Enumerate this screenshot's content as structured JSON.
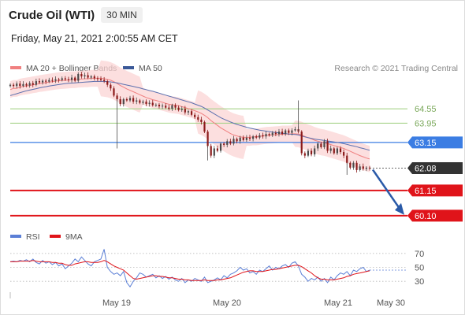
{
  "header": {
    "instrument": "Crude Oil (WTI)",
    "timeframe": "30 MIN",
    "datetime": "Friday, May 21, 2021 2:00:55 AM CET"
  },
  "legend": {
    "ma20_label": "MA 20 + Bollinger Bands",
    "ma50_label": "MA 50",
    "rsi_label": "RSI",
    "rsi_ma_label": "9MA",
    "copyright": "Research © 2021 Trading Central"
  },
  "colors": {
    "ma20": "#f08080",
    "bollinger_fill": "#fbd4d4",
    "ma50": "#5b6fae",
    "pivot_line": "#3b7de3",
    "support_red": "#e0141a",
    "resistance_green": "#a6d38a",
    "rsi": "#5b7fd6",
    "rsi_ma": "#e0141a",
    "arrow": "#2a5aa8",
    "candle_up": "#4a4a4a",
    "candle_down": "#8b1a1a"
  },
  "chart_data": [
    {
      "type": "candlestick",
      "ylim": [
        59.8,
        65.9
      ],
      "x_ticks": [
        "May 19",
        "May 20",
        "May 21",
        "May 30"
      ],
      "levels": [
        {
          "value": 64.55,
          "label": "64.55",
          "role": "resistance",
          "color": "#a6d38a"
        },
        {
          "value": 63.95,
          "label": "63.95",
          "role": "resistance",
          "color": "#a6d38a"
        },
        {
          "value": 63.15,
          "label": "63.15",
          "role": "pivot",
          "color": "#3b7de3"
        },
        {
          "value": 62.08,
          "label": "62.08",
          "role": "last_price",
          "color": "#333333"
        },
        {
          "value": 61.15,
          "label": "61.15",
          "role": "support",
          "color": "#e0141a"
        },
        {
          "value": 60.1,
          "label": "60.10",
          "role": "support",
          "color": "#e0141a"
        }
      ],
      "close": [
        65.55,
        65.5,
        65.6,
        65.5,
        65.58,
        65.52,
        65.62,
        65.55,
        65.7,
        65.65,
        65.72,
        65.68,
        65.75,
        65.72,
        65.78,
        65.75,
        65.82,
        65.78,
        65.75,
        65.85,
        65.72,
        66.0,
        65.9,
        65.95,
        65.85,
        65.9,
        65.82,
        65.8,
        65.75,
        65.7,
        65.55,
        65.4,
        65.1,
        64.95,
        64.75,
        64.95,
        64.9,
        65.0,
        64.85,
        64.9,
        64.8,
        64.85,
        64.75,
        64.8,
        64.7,
        64.72,
        64.65,
        64.68,
        64.6,
        64.55,
        64.7,
        64.6,
        64.5,
        64.55,
        64.4,
        64.45,
        64.3,
        64.2,
        64.1,
        64.0,
        63.6,
        63.0,
        62.6,
        62.9,
        62.8,
        63.1,
        63.05,
        63.2,
        63.1,
        63.3,
        63.2,
        63.35,
        63.25,
        63.35,
        63.3,
        63.4,
        63.35,
        63.45,
        63.4,
        63.5,
        63.45,
        63.55,
        63.5,
        63.6,
        63.5,
        63.65,
        63.55,
        63.65,
        63.7,
        63.6,
        62.7,
        62.6,
        62.8,
        62.65,
        62.9,
        63.1,
        62.95,
        63.2,
        62.8,
        62.9,
        62.7,
        62.9,
        62.75,
        62.6,
        62.3,
        62.1,
        62.3,
        62.0,
        62.15,
        62.05,
        62.1,
        62.08
      ],
      "ma20": [
        65.35,
        65.4,
        65.4,
        65.45,
        65.48,
        65.5,
        65.52,
        65.55,
        65.57,
        65.6,
        65.62,
        65.64,
        65.66,
        65.68,
        65.7,
        65.72,
        65.73,
        65.74,
        65.75,
        65.76,
        65.76,
        65.78,
        65.79,
        65.8,
        65.8,
        65.82,
        65.82,
        65.82,
        65.82,
        65.8,
        65.78,
        65.74,
        65.68,
        65.6,
        65.52,
        65.45,
        65.38,
        65.32,
        65.26,
        65.2,
        65.14,
        65.08,
        65.02,
        64.98,
        64.93,
        64.9,
        64.86,
        64.82,
        64.78,
        64.74,
        64.72,
        64.7,
        64.68,
        64.64,
        64.6,
        64.56,
        64.52,
        64.47,
        64.42,
        64.36,
        64.28,
        64.18,
        64.06,
        63.96,
        63.86,
        63.76,
        63.68,
        63.6,
        63.52,
        63.46,
        63.42,
        63.38,
        63.36,
        63.36,
        63.36,
        63.38,
        63.38,
        63.4,
        63.42,
        63.44,
        63.45,
        63.46,
        63.47,
        63.48,
        63.5,
        63.5,
        63.5,
        63.51,
        63.51,
        63.5,
        63.46,
        63.4,
        63.35,
        63.3,
        63.24,
        63.2,
        63.16,
        63.14,
        63.1,
        63.06,
        63.02,
        62.98,
        62.94,
        62.9,
        62.84,
        62.78,
        62.72,
        62.66,
        62.6,
        62.55,
        62.5,
        62.46
      ],
      "ma50": [
        65.1,
        65.14,
        65.18,
        65.22,
        65.26,
        65.3,
        65.33,
        65.36,
        65.39,
        65.42,
        65.45,
        65.47,
        65.5,
        65.52,
        65.54,
        65.56,
        65.58,
        65.6,
        65.61,
        65.62,
        65.63,
        65.64,
        65.65,
        65.66,
        65.67,
        65.68,
        65.69,
        65.69,
        65.69,
        65.69,
        65.68,
        65.67,
        65.65,
        65.63,
        65.6,
        65.57,
        65.54,
        65.51,
        65.48,
        65.45,
        65.42,
        65.38,
        65.35,
        65.31,
        65.28,
        65.24,
        65.2,
        65.16,
        65.12,
        65.08,
        65.04,
        65.0,
        64.96,
        64.92,
        64.88,
        64.84,
        64.8,
        64.75,
        64.7,
        64.65,
        64.58,
        64.5,
        64.42,
        64.34,
        64.26,
        64.18,
        64.12,
        64.06,
        64.0,
        63.95,
        63.9,
        63.86,
        63.82,
        63.78,
        63.75,
        63.72,
        63.69,
        63.66,
        63.64,
        63.62,
        63.6,
        63.58,
        63.56,
        63.55,
        63.53,
        63.52,
        63.5,
        63.49,
        63.48,
        63.46,
        63.42,
        63.38,
        63.35,
        63.32,
        63.29,
        63.27,
        63.25,
        63.23,
        63.21,
        63.19,
        63.17,
        63.15,
        63.13,
        63.1,
        63.07,
        63.03,
        63.0,
        62.97,
        62.93,
        62.9,
        62.86,
        62.82
      ]
    },
    {
      "type": "line",
      "name": "RSI",
      "y_ticks": [
        70,
        50,
        30
      ],
      "ylim": [
        20,
        80
      ],
      "rsi": [
        58,
        59,
        58,
        60,
        59,
        61,
        58,
        62,
        57,
        55,
        60,
        56,
        58,
        54,
        57,
        52,
        55,
        48,
        52,
        56,
        62,
        58,
        65,
        60,
        55,
        52,
        58,
        60,
        62,
        76,
        50,
        44,
        40,
        42,
        38,
        44,
        28,
        22,
        30,
        35,
        42,
        40,
        36,
        38,
        40,
        35,
        38,
        34,
        37,
        33,
        36,
        32,
        30,
        34,
        28,
        32,
        30,
        34,
        32,
        30,
        36,
        28,
        30,
        32,
        35,
        32,
        38,
        35,
        40,
        42,
        45,
        50,
        46,
        48,
        42,
        44,
        40,
        46,
        44,
        48,
        52,
        46,
        50,
        48,
        52,
        54,
        50,
        56,
        58,
        52,
        40,
        36,
        30,
        34,
        32,
        36,
        30,
        34,
        28,
        36,
        32,
        38,
        42,
        40,
        44,
        38,
        46,
        44,
        48,
        50,
        44,
        46
      ],
      "rsi_ma": [
        58,
        58,
        58,
        59,
        59,
        59,
        59,
        60,
        59,
        58,
        58,
        58,
        58,
        57,
        57,
        56,
        56,
        54,
        53,
        53,
        55,
        56,
        57,
        58,
        58,
        57,
        57,
        57,
        58,
        60,
        58,
        55,
        52,
        50,
        48,
        46,
        42,
        38,
        34,
        33,
        34,
        35,
        36,
        37,
        38,
        38,
        37,
        37,
        36,
        35,
        35,
        34,
        33,
        33,
        32,
        32,
        31,
        31,
        31,
        31,
        32,
        31,
        31,
        31,
        32,
        32,
        33,
        34,
        35,
        37,
        39,
        41,
        43,
        44,
        45,
        45,
        44,
        44,
        44,
        45,
        46,
        47,
        47,
        48,
        49,
        50,
        51,
        52,
        53,
        53,
        51,
        48,
        45,
        42,
        38,
        35,
        33,
        33,
        32,
        32,
        32,
        33,
        34,
        35,
        37,
        38,
        40,
        41,
        42,
        43,
        44,
        45
      ]
    }
  ]
}
